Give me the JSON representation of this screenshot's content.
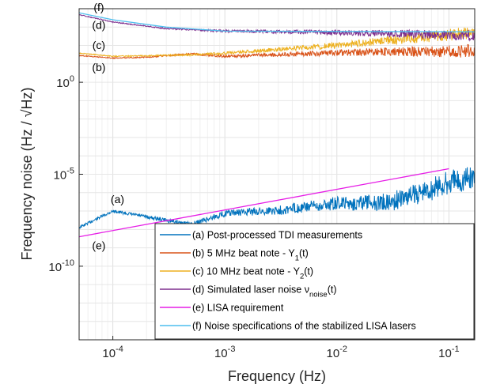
{
  "chart_data": {
    "type": "line",
    "xlabel": "Frequency (Hz)",
    "ylabel": "Frequency noise (Hz / √Hz)",
    "xscale": "log",
    "yscale": "log",
    "xlim": [
      5e-05,
      0.17
    ],
    "ylim": [
      1e-14,
      10000.0
    ],
    "grid": true,
    "legend_position": "bottom-right",
    "x_ticks": [
      {
        "value": 0.0001,
        "base": "10",
        "exp": "-4"
      },
      {
        "value": 0.001,
        "base": "10",
        "exp": "-3"
      },
      {
        "value": 0.01,
        "base": "10",
        "exp": "-2"
      },
      {
        "value": 0.1,
        "base": "10",
        "exp": "-1"
      }
    ],
    "y_ticks": [
      {
        "value": 1,
        "base": "10",
        "exp": "0"
      },
      {
        "value": 1e-05,
        "base": "10",
        "exp": "-5"
      },
      {
        "value": 1e-10,
        "base": "10",
        "exp": "-10"
      }
    ],
    "series": [
      {
        "name": "(a) Post-processed TDI measurements",
        "tag": "(a)",
        "color": "#0072BD",
        "x": [
          5e-05,
          0.0001,
          0.0002,
          0.0005,
          0.001,
          0.003,
          0.01,
          0.03,
          0.17
        ],
        "y": [
          1.5e-08,
          1.2e-07,
          6e-08,
          2.5e-08,
          1.1e-07,
          2e-07,
          6e-07,
          1e-06,
          5e-05
        ]
      },
      {
        "name": "(b) 5 MHz beat note - Y",
        "sub": "1",
        "suffix": "(t)",
        "tag": "(b)",
        "color": "#D95319",
        "x": [
          5e-05,
          0.0001,
          0.0002,
          0.0005,
          0.001,
          0.01,
          0.17
        ],
        "y": [
          30,
          22,
          25,
          40,
          30,
          60,
          120
        ]
      },
      {
        "name": "(c) 10 MHz beat note - Y",
        "sub": "2",
        "suffix": "(t)",
        "tag": "(c)",
        "color": "#EDB120",
        "x": [
          5e-05,
          0.0001,
          0.0002,
          0.0005,
          0.001,
          0.01,
          0.17
        ],
        "y": [
          40,
          28,
          30,
          35,
          45,
          150,
          1200
        ]
      },
      {
        "name": "(d) Simulated laser noise ν",
        "sub": "noise",
        "suffix": "(t)",
        "tag": "(d)",
        "color": "#7E2F8E",
        "x": [
          5e-05,
          0.0001,
          0.0003,
          0.001,
          0.01,
          0.17
        ],
        "y": [
          5000,
          2000,
          900,
          700,
          700,
          700
        ]
      },
      {
        "name": "(e) LISA requirement",
        "tag": "(e)",
        "color": "#E61EE6",
        "x": [
          5e-05,
          0.1
        ],
        "y": [
          4e-09,
          2e-05
        ]
      },
      {
        "name": "(f) Noise specifications of the stabilized LISA lasers",
        "tag": "(f)",
        "color": "#4DBEEE",
        "x": [
          5e-05,
          0.0001,
          0.0003,
          0.001,
          0.17
        ],
        "y": [
          6000,
          2500,
          1000,
          600,
          550
        ]
      }
    ]
  }
}
